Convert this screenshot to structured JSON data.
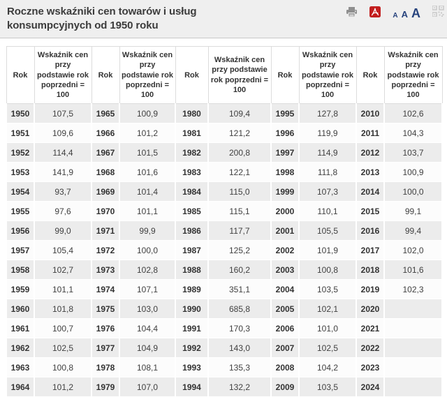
{
  "header": {
    "title": "Roczne wskaźniki cen towarów i usług konsumpcyjnych od 1950 roku",
    "tools": {
      "print_icon": "printer-icon",
      "pdf_icon": "pdf-export-icon",
      "qr_icon": "qr-code-icon",
      "font_sizes": [
        "A",
        "A",
        "A"
      ]
    },
    "colors": {
      "toolbar_blue": "#27437d",
      "pdf_red": "#c21e1e",
      "icon_gray": "#8f8f8f",
      "header_bg": "#efefef"
    }
  },
  "table": {
    "year_header": "Rok",
    "index_header": "Wskaźnik cen przy podstawie rok poprzedni = 100",
    "stripe_color": "#ececec",
    "groups": [
      {
        "rows": [
          {
            "year": "1950",
            "value": "107,5"
          },
          {
            "year": "1951",
            "value": "109,6"
          },
          {
            "year": "1952",
            "value": "114,4"
          },
          {
            "year": "1953",
            "value": "141,9"
          },
          {
            "year": "1954",
            "value": "93,7"
          },
          {
            "year": "1955",
            "value": "97,6"
          },
          {
            "year": "1956",
            "value": "99,0"
          },
          {
            "year": "1957",
            "value": "105,4"
          },
          {
            "year": "1958",
            "value": "102,7"
          },
          {
            "year": "1959",
            "value": "101,1"
          },
          {
            "year": "1960",
            "value": "101,8"
          },
          {
            "year": "1961",
            "value": "100,7"
          },
          {
            "year": "1962",
            "value": "102,5"
          },
          {
            "year": "1963",
            "value": "100,8"
          },
          {
            "year": "1964",
            "value": "101,2"
          }
        ]
      },
      {
        "rows": [
          {
            "year": "1965",
            "value": "100,9"
          },
          {
            "year": "1966",
            "value": "101,2"
          },
          {
            "year": "1967",
            "value": "101,5"
          },
          {
            "year": "1968",
            "value": "101,6"
          },
          {
            "year": "1969",
            "value": "101,4"
          },
          {
            "year": "1970",
            "value": "101,1"
          },
          {
            "year": "1971",
            "value": "99,9"
          },
          {
            "year": "1972",
            "value": "100,0"
          },
          {
            "year": "1973",
            "value": "102,8"
          },
          {
            "year": "1974",
            "value": "107,1"
          },
          {
            "year": "1975",
            "value": "103,0"
          },
          {
            "year": "1976",
            "value": "104,4"
          },
          {
            "year": "1977",
            "value": "104,9"
          },
          {
            "year": "1978",
            "value": "108,1"
          },
          {
            "year": "1979",
            "value": "107,0"
          }
        ]
      },
      {
        "rows": [
          {
            "year": "1980",
            "value": "109,4"
          },
          {
            "year": "1981",
            "value": "121,2"
          },
          {
            "year": "1982",
            "value": "200,8"
          },
          {
            "year": "1983",
            "value": "122,1"
          },
          {
            "year": "1984",
            "value": "115,0"
          },
          {
            "year": "1985",
            "value": "115,1"
          },
          {
            "year": "1986",
            "value": "117,7"
          },
          {
            "year": "1987",
            "value": "125,2"
          },
          {
            "year": "1988",
            "value": "160,2"
          },
          {
            "year": "1989",
            "value": "351,1"
          },
          {
            "year": "1990",
            "value": "685,8"
          },
          {
            "year": "1991",
            "value": "170,3"
          },
          {
            "year": "1992",
            "value": "143,0"
          },
          {
            "year": "1993",
            "value": "135,3"
          },
          {
            "year": "1994",
            "value": "132,2"
          }
        ]
      },
      {
        "rows": [
          {
            "year": "1995",
            "value": "127,8"
          },
          {
            "year": "1996",
            "value": "119,9"
          },
          {
            "year": "1997",
            "value": "114,9"
          },
          {
            "year": "1998",
            "value": "111,8"
          },
          {
            "year": "1999",
            "value": "107,3"
          },
          {
            "year": "2000",
            "value": "110,1"
          },
          {
            "year": "2001",
            "value": "105,5"
          },
          {
            "year": "2002",
            "value": "101,9"
          },
          {
            "year": "2003",
            "value": "100,8"
          },
          {
            "year": "2004",
            "value": "103,5"
          },
          {
            "year": "2005",
            "value": "102,1"
          },
          {
            "year": "2006",
            "value": "101,0"
          },
          {
            "year": "2007",
            "value": "102,5"
          },
          {
            "year": "2008",
            "value": "104,2"
          },
          {
            "year": "2009",
            "value": "103,5"
          }
        ]
      },
      {
        "rows": [
          {
            "year": "2010",
            "value": "102,6"
          },
          {
            "year": "2011",
            "value": "104,3"
          },
          {
            "year": "2012",
            "value": "103,7"
          },
          {
            "year": "2013",
            "value": "100,9"
          },
          {
            "year": "2014",
            "value": "100,0"
          },
          {
            "year": "2015",
            "value": "99,1"
          },
          {
            "year": "2016",
            "value": "99,4"
          },
          {
            "year": "2017",
            "value": "102,0"
          },
          {
            "year": "2018",
            "value": "101,6"
          },
          {
            "year": "2019",
            "value": "102,3"
          },
          {
            "year": "2020",
            "value": ""
          },
          {
            "year": "2021",
            "value": ""
          },
          {
            "year": "2022",
            "value": ""
          },
          {
            "year": "2023",
            "value": ""
          },
          {
            "year": "2024",
            "value": ""
          }
        ]
      }
    ]
  }
}
